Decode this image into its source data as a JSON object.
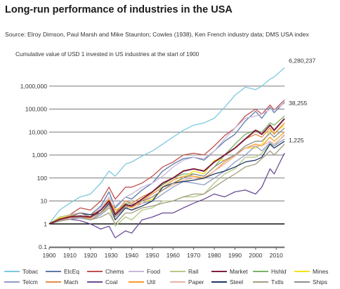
{
  "header": {
    "title": "Long-run performance of industries in the USA",
    "source": "Source: Elroy Dimson, Paul Marsh and Mike Staunton; Cowles (1938), Ken French industry data; DMS USA index",
    "subtitle": "Cumulative value of USD 1 invested in US industries at the start of 1900"
  },
  "chart_data": {
    "type": "line",
    "title": "Long-run performance of industries in the USA",
    "subtitle": "Cumulative value of USD 1 invested in US industries at the start of 1900",
    "xlabel": "",
    "ylabel": "",
    "y_scale": "log",
    "xlim": [
      1900,
      2014
    ],
    "ylim": [
      0.1,
      10000000
    ],
    "x_ticks": [
      "1900",
      "1910",
      "1920",
      "1930",
      "1940",
      "1950",
      "1960",
      "1970",
      "1980",
      "1990",
      "2000",
      "2010"
    ],
    "y_ticks": [
      "0.1",
      "1",
      "10",
      "100",
      "1,000",
      "10,000",
      "100,000",
      "1,000,000"
    ],
    "grid": "horizontal",
    "legend_position": "bottom",
    "annotations": [
      "6,280,237",
      "38,255",
      "1,225"
    ],
    "x": [
      1900,
      1905,
      1910,
      1915,
      1920,
      1925,
      1929,
      1932,
      1937,
      1940,
      1945,
      1950,
      1955,
      1960,
      1965,
      1970,
      1975,
      1980,
      1985,
      1990,
      1995,
      2000,
      2003,
      2007,
      2009,
      2014
    ],
    "series": [
      {
        "name": "Tobac",
        "color": "#7ec8de",
        "values": [
          1,
          4,
          8,
          15,
          20,
          60,
          200,
          120,
          400,
          500,
          900,
          1500,
          3000,
          6000,
          12000,
          20000,
          25000,
          40000,
          120000,
          400000,
          900000,
          700000,
          1000000,
          2000000,
          2500000,
          6280237
        ]
      },
      {
        "name": "ElcEq",
        "color": "#5b79a8",
        "values": [
          1,
          1.8,
          2.5,
          3,
          2.5,
          6,
          25,
          5,
          15,
          12,
          30,
          60,
          200,
          400,
          700,
          800,
          600,
          1500,
          4000,
          8000,
          30000,
          80000,
          40000,
          120000,
          70000,
          200000
        ]
      },
      {
        "name": "Chems",
        "color": "#c0504d",
        "values": [
          1,
          1.8,
          2.5,
          5,
          4,
          10,
          40,
          12,
          40,
          40,
          60,
          120,
          300,
          500,
          1000,
          1200,
          1000,
          2500,
          7000,
          15000,
          50000,
          100000,
          60000,
          150000,
          90000,
          250000
        ]
      },
      {
        "name": "Food",
        "color": "#c9b8db",
        "values": [
          1,
          1.8,
          2.5,
          3,
          2,
          5,
          15,
          6,
          15,
          20,
          40,
          60,
          120,
          300,
          600,
          800,
          700,
          1500,
          5000,
          15000,
          40000,
          50000,
          60000,
          100000,
          90000,
          180000
        ]
      },
      {
        "name": "Rail",
        "color": "#b5c987",
        "values": [
          1,
          2,
          2.5,
          2,
          1.5,
          3,
          6,
          0.8,
          2,
          1.5,
          4,
          5,
          10,
          10,
          15,
          15,
          20,
          60,
          150,
          250,
          800,
          800,
          1200,
          3000,
          2500,
          8000
        ]
      },
      {
        "name": "Market",
        "color": "#7f1d3c",
        "values": [
          1,
          1.6,
          2,
          2.2,
          2,
          4,
          10,
          2.5,
          7,
          6,
          12,
          25,
          60,
          100,
          200,
          250,
          200,
          500,
          1000,
          2000,
          5000,
          12000,
          8000,
          20000,
          12000,
          38255
        ]
      },
      {
        "name": "Hshld",
        "color": "#7ab366",
        "values": [
          1,
          1.5,
          2,
          2.2,
          1.5,
          3,
          8,
          3,
          8,
          8,
          15,
          25,
          50,
          100,
          150,
          150,
          120,
          300,
          1000,
          3000,
          8000,
          12000,
          10000,
          25000,
          20000,
          50000
        ]
      },
      {
        "name": "Mines",
        "color": "#f7e21b",
        "values": [
          1,
          1.8,
          2.2,
          3,
          2,
          3,
          5,
          2,
          6,
          6,
          8,
          12,
          30,
          50,
          100,
          200,
          150,
          600,
          600,
          1000,
          2000,
          2000,
          3000,
          12000,
          9000,
          20000
        ]
      },
      {
        "name": "Telcm",
        "color": "#8f9ec4",
        "values": [
          1,
          1.4,
          1.6,
          1.8,
          1.5,
          2.5,
          5,
          3,
          5,
          6,
          8,
          10,
          20,
          40,
          70,
          60,
          50,
          100,
          200,
          500,
          1000,
          2500,
          1500,
          3500,
          2500,
          5000
        ]
      },
      {
        "name": "Mach",
        "color": "#e98a45",
        "values": [
          1,
          1.6,
          2.2,
          3,
          2.5,
          4,
          12,
          3,
          10,
          8,
          15,
          25,
          60,
          100,
          200,
          250,
          200,
          500,
          1000,
          2000,
          5000,
          8000,
          6000,
          15000,
          8000,
          25000
        ]
      },
      {
        "name": "Coal",
        "color": "#6a4c93",
        "values": [
          1,
          1.4,
          1.6,
          1.4,
          1,
          0.6,
          0.8,
          0.25,
          0.5,
          0.4,
          1.5,
          2,
          3,
          3,
          5,
          8,
          12,
          20,
          15,
          25,
          30,
          20,
          40,
          250,
          150,
          1225
        ]
      },
      {
        "name": "Util",
        "color": "#f59d2a",
        "values": [
          1,
          1.5,
          2,
          2,
          1.8,
          4,
          12,
          4,
          6,
          5,
          10,
          20,
          40,
          80,
          120,
          120,
          100,
          200,
          500,
          1000,
          2000,
          3000,
          2500,
          6000,
          4000,
          10000
        ]
      },
      {
        "name": "Paper",
        "color": "#e8b4a6",
        "values": [
          1,
          1.4,
          1.8,
          2,
          1.6,
          3,
          6,
          2,
          5,
          4,
          8,
          15,
          30,
          50,
          80,
          100,
          90,
          200,
          400,
          900,
          2000,
          2500,
          2500,
          4000,
          3000,
          7000
        ]
      },
      {
        "name": "Steel",
        "color": "#1f3864",
        "values": [
          1,
          1.5,
          2,
          3,
          2.5,
          3,
          8,
          1.5,
          5,
          4,
          6,
          10,
          40,
          60,
          70,
          80,
          100,
          150,
          200,
          300,
          500,
          600,
          800,
          3000,
          2000,
          4000
        ]
      },
      {
        "name": "Txtls",
        "color": "#a39c81",
        "values": [
          1,
          1.3,
          1.6,
          2,
          1.5,
          2,
          3,
          1,
          3,
          3,
          5,
          6,
          8,
          10,
          15,
          20,
          20,
          40,
          80,
          150,
          300,
          400,
          700,
          1500,
          1000,
          3000
        ]
      },
      {
        "name": "Ships",
        "color": "#8e8e8e",
        "values": [
          1,
          1.5,
          2,
          3,
          2,
          3,
          7,
          2,
          6,
          7,
          10,
          15,
          30,
          60,
          100,
          150,
          120,
          300,
          600,
          1000,
          2500,
          4000,
          4000,
          9000,
          6000,
          15000
        ]
      }
    ]
  }
}
